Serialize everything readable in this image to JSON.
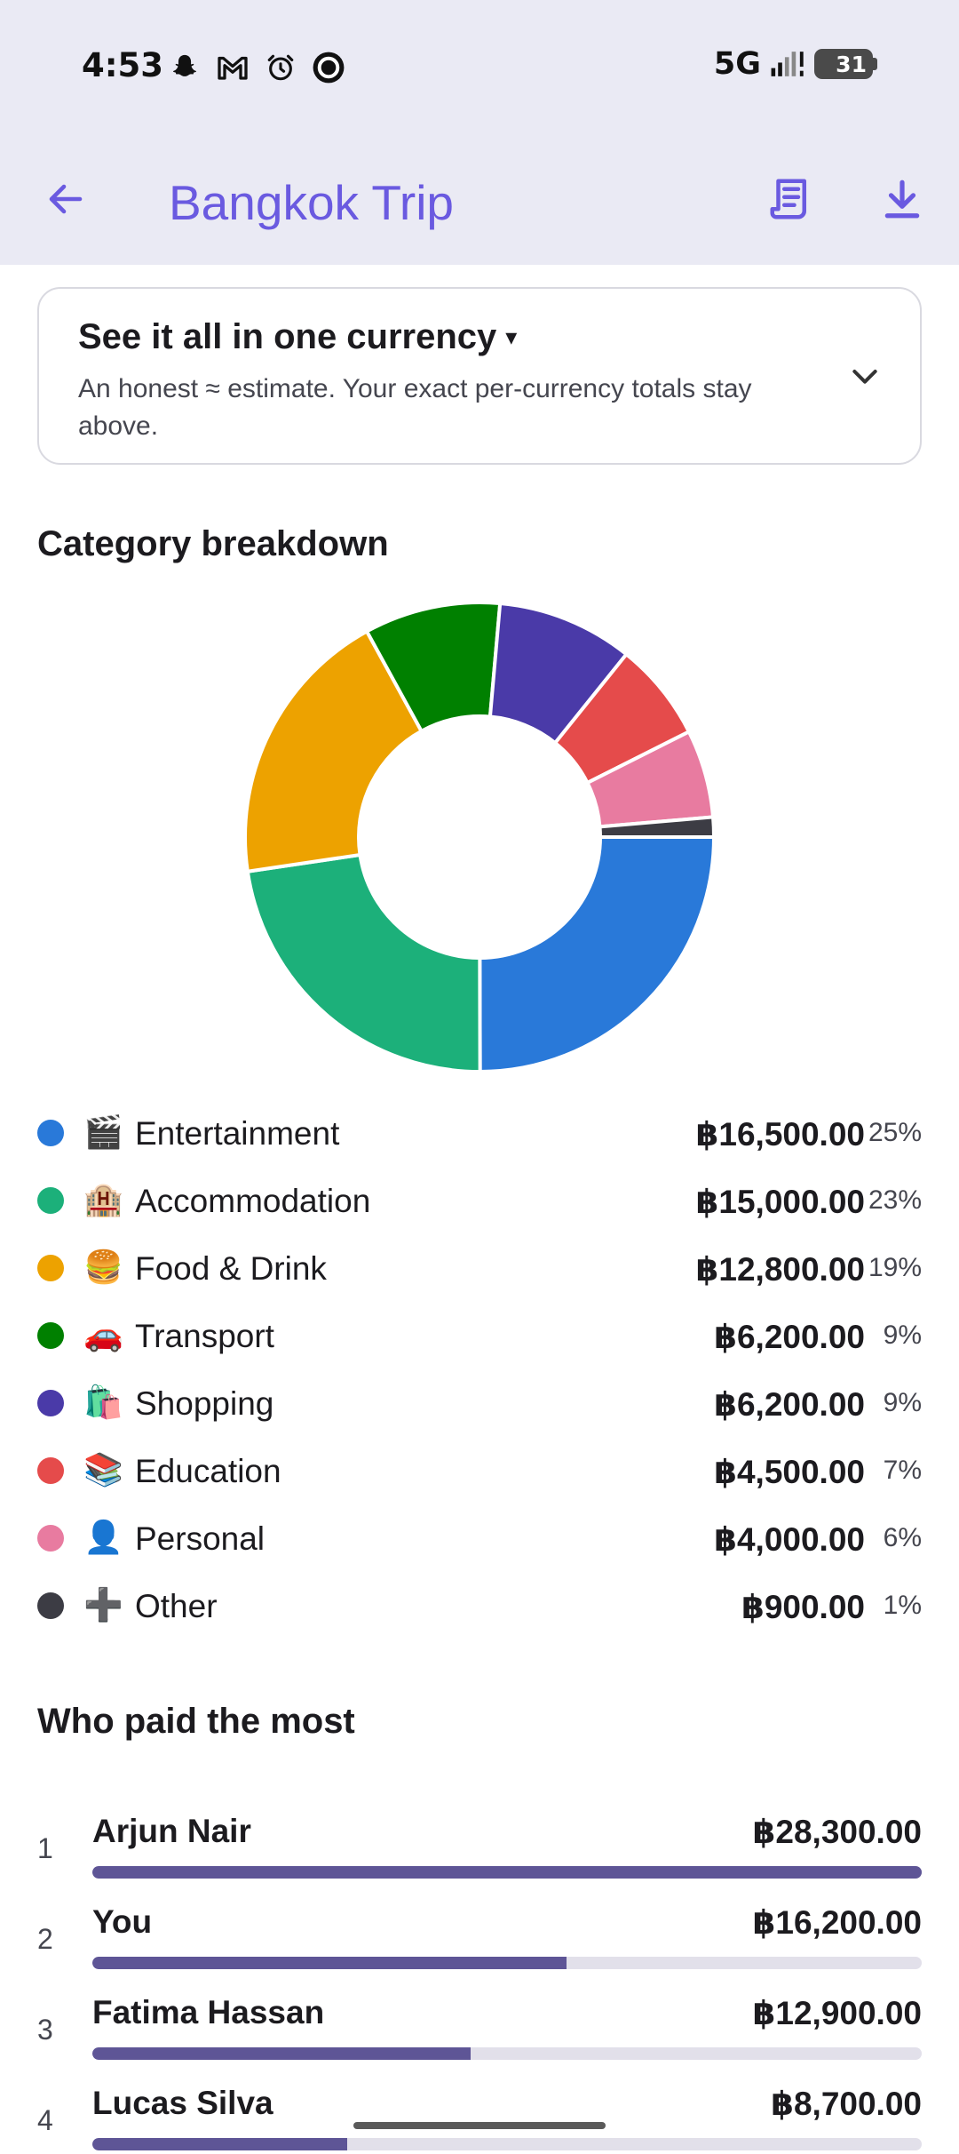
{
  "status_bar": {
    "time": "4:53",
    "network": "5G",
    "battery": "31",
    "icons": [
      "snapchat-icon",
      "gmail-icon",
      "alarm-icon",
      "circle-app-icon",
      "signal-icon",
      "battery-icon"
    ]
  },
  "app_bar": {
    "title": "Bangkok Trip",
    "icons": [
      "back-arrow-icon",
      "receipt-icon",
      "download-icon"
    ],
    "accent": "#6a5ae0"
  },
  "currency_card": {
    "title": "See it all in one currency",
    "caret": "▾",
    "description": "An honest ≈ estimate. Your exact per-currency totals stay above."
  },
  "category_section": {
    "title": "Category breakdown"
  },
  "chart_data": {
    "type": "pie",
    "variant": "donut",
    "categories": [
      "Entertainment",
      "Accommodation",
      "Food & Drink",
      "Transport",
      "Shopping",
      "Education",
      "Personal",
      "Other"
    ],
    "values": [
      16500,
      15000,
      12800,
      6200,
      6200,
      4500,
      4000,
      900
    ],
    "colors": [
      "#2979d9",
      "#1cb07a",
      "#eda200",
      "#008000",
      "#4a3aa8",
      "#e54b4b",
      "#e87ba0",
      "#3c3c44"
    ],
    "legend_placement": "bottom"
  },
  "legend": [
    {
      "emoji": "🎬",
      "name": "Entertainment",
      "amount": "฿16,500.00",
      "percent": "25%",
      "color": "#2979d9"
    },
    {
      "emoji": "🏨",
      "name": "Accommodation",
      "amount": "฿15,000.00",
      "percent": "23%",
      "color": "#1cb07a"
    },
    {
      "emoji": "🍔",
      "name": "Food & Drink",
      "amount": "฿12,800.00",
      "percent": "19%",
      "color": "#eda200"
    },
    {
      "emoji": "🚗",
      "name": "Transport",
      "amount": "฿6,200.00",
      "percent": "9%",
      "color": "#008000"
    },
    {
      "emoji": "🛍️",
      "name": "Shopping",
      "amount": "฿6,200.00",
      "percent": "9%",
      "color": "#4a3aa8"
    },
    {
      "emoji": "📚",
      "name": "Education",
      "amount": "฿4,500.00",
      "percent": "7%",
      "color": "#e54b4b"
    },
    {
      "emoji": "👤",
      "name": "Personal",
      "amount": "฿4,000.00",
      "percent": "6%",
      "color": "#e87ba0"
    },
    {
      "emoji": "➕",
      "name": "Other",
      "amount": "฿900.00",
      "percent": "1%",
      "color": "#3c3c44"
    }
  ],
  "payers_section": {
    "title": "Who paid the most",
    "bar_color": "#5e5596",
    "payers": [
      {
        "rank": "1",
        "name": "Arjun Nair",
        "amount": "฿28,300.00",
        "share": 1.0
      },
      {
        "rank": "2",
        "name": "You",
        "amount": "฿16,200.00",
        "share": 0.572
      },
      {
        "rank": "3",
        "name": "Fatima Hassan",
        "amount": "฿12,900.00",
        "share": 0.456
      },
      {
        "rank": "4",
        "name": "Lucas Silva",
        "amount": "฿8,700.00",
        "share": 0.307
      }
    ]
  }
}
